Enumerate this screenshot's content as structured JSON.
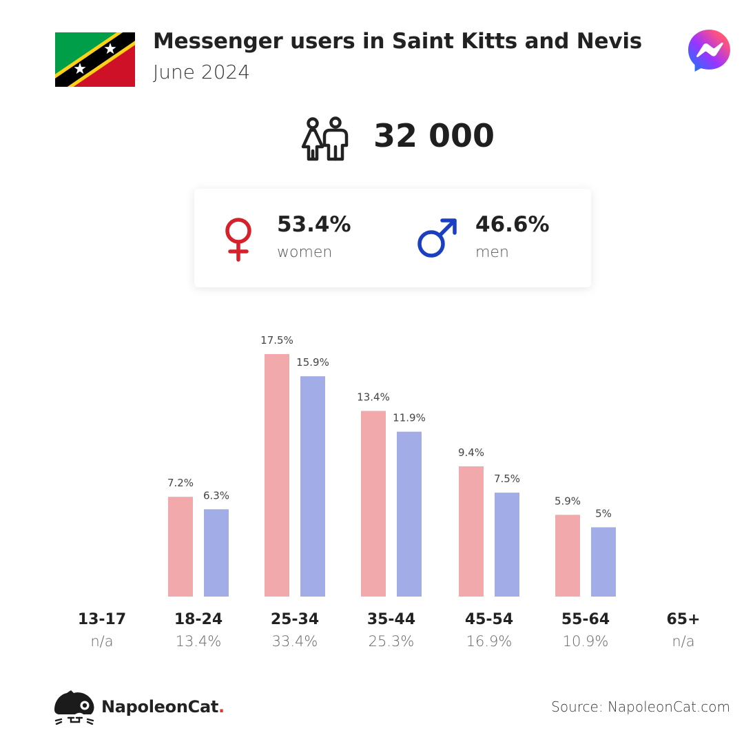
{
  "header": {
    "title": "Messenger users in Saint Kitts and Nevis",
    "subtitle": "June 2024"
  },
  "summary": {
    "total_users": "32 000"
  },
  "gender": {
    "women_pct": "53.4%",
    "women_label": "women",
    "men_pct": "46.6%",
    "men_label": "men"
  },
  "colors": {
    "women": "#f2a9ab",
    "men": "#a2ade8",
    "female_symbol": "#d6202a",
    "male_symbol": "#1a3fc0"
  },
  "icons": [
    "flag-saint-kitts-and-nevis-icon",
    "messenger-logo-icon",
    "users-icon",
    "female-symbol-icon",
    "male-symbol-icon",
    "napoleoncat-logo-icon"
  ],
  "chart_data": {
    "type": "bar",
    "categories": [
      "13-17",
      "18-24",
      "25-34",
      "35-44",
      "45-54",
      "55-64",
      "65+"
    ],
    "category_totals": [
      "n/a",
      "13.4%",
      "33.4%",
      "25.3%",
      "16.9%",
      "10.9%",
      "n/a"
    ],
    "series": [
      {
        "name": "women",
        "values": [
          null,
          7.2,
          17.5,
          13.4,
          9.4,
          5.9,
          null
        ],
        "labels": [
          "",
          "7.2%",
          "17.5%",
          "13.4%",
          "9.4%",
          "5.9%",
          ""
        ]
      },
      {
        "name": "men",
        "values": [
          null,
          6.3,
          15.9,
          11.9,
          7.5,
          5.0,
          null
        ],
        "labels": [
          "",
          "6.3%",
          "15.9%",
          "11.9%",
          "7.5%",
          "5%",
          ""
        ]
      }
    ],
    "title": "",
    "xlabel": "",
    "ylabel": "",
    "ylim": [
      0,
      17.5
    ],
    "grid": false,
    "legend": "none"
  },
  "footer": {
    "brand_name": "NapoleonCat",
    "brand_dot": ".",
    "source": "Source: NapoleonCat.com"
  }
}
